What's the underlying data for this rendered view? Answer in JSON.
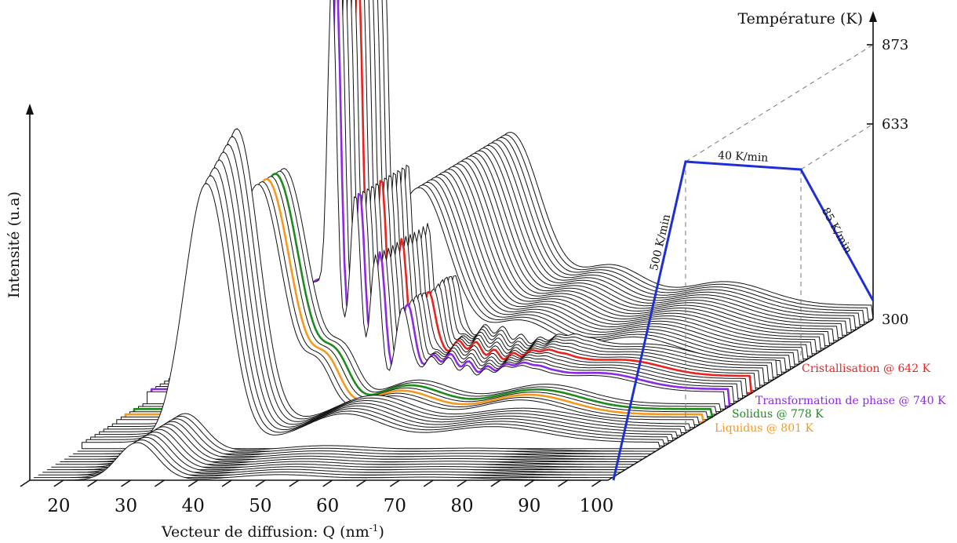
{
  "chart_data": {
    "type": "line",
    "variant": "3d-waterfall",
    "xlabel": "Vecteur de diffusion: Q (nm",
    "xlabel_exponent": "-1",
    "xlabel_suffix": ")",
    "ylabel": "Intensité (u.a)",
    "zlabel": "Température (K)",
    "x_ticks": [
      "20",
      "30",
      "40",
      "50",
      "60",
      "70",
      "80",
      "90",
      "100"
    ],
    "x_range": [
      15,
      101
    ],
    "temperature_ticks": [
      "300",
      "633",
      "873"
    ],
    "temperature_profile": {
      "segments": [
        {
          "label": "500 K/min",
          "from_K": 300,
          "to_K": 873
        },
        {
          "label": "40 K/min",
          "from_K": 873,
          "to_K": 873
        },
        {
          "label": "85 K/min",
          "from_K": 873,
          "to_K": 300
        }
      ],
      "color": "#1f2fd6"
    },
    "highlighted_scans": [
      {
        "name": "Cristallisation @ 642 K",
        "color": "#e8231f"
      },
      {
        "name": "Transformation de phase @ 740 K",
        "color": "#8a2be2"
      },
      {
        "name": "Solidus @ 778 K",
        "color": "#1e8a1e"
      },
      {
        "name": "Liquidus @ 801 K",
        "color": "#f39a1e"
      }
    ],
    "scan_count": 62,
    "grid": false
  }
}
